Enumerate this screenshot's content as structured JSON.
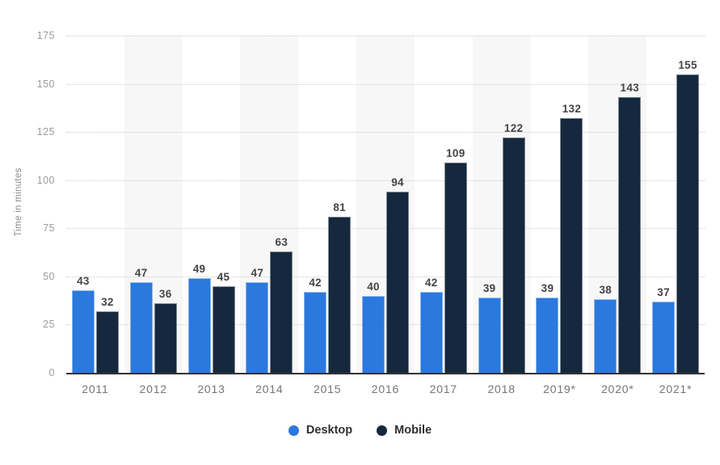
{
  "chart_data": {
    "type": "bar",
    "title": "",
    "ylabel": "Time in minutes",
    "xlabel": "",
    "categories": [
      "2011",
      "2012",
      "2013",
      "2014",
      "2015",
      "2016",
      "2017",
      "2018",
      "2019*",
      "2020*",
      "2021*"
    ],
    "series": [
      {
        "name": "Desktop",
        "color": "#2B78DE",
        "values": [
          43,
          47,
          49,
          47,
          42,
          40,
          42,
          39,
          39,
          38,
          37
        ]
      },
      {
        "name": "Mobile",
        "color": "#15283D",
        "values": [
          32,
          36,
          45,
          63,
          81,
          94,
          109,
          122,
          132,
          143,
          155
        ]
      }
    ],
    "ylim": [
      0,
      175
    ],
    "yticks": [
      0,
      25,
      50,
      75,
      100,
      125,
      150,
      175
    ],
    "grid": "horizontal-dotted",
    "column_bands": "alternate-gray",
    "legend_position": "bottom",
    "value_labels": "above-bars"
  },
  "colors": {
    "background": "#ffffff",
    "band": "#f7f7f7",
    "grid": "#cccccc",
    "axis_line": "#333333",
    "value_label": "#444444",
    "y_tick_label": "#9b9b9b",
    "x_tick_label": "#757575",
    "legend_label": "#2f2f2f",
    "y_axis_title": "#8c8c8c"
  }
}
